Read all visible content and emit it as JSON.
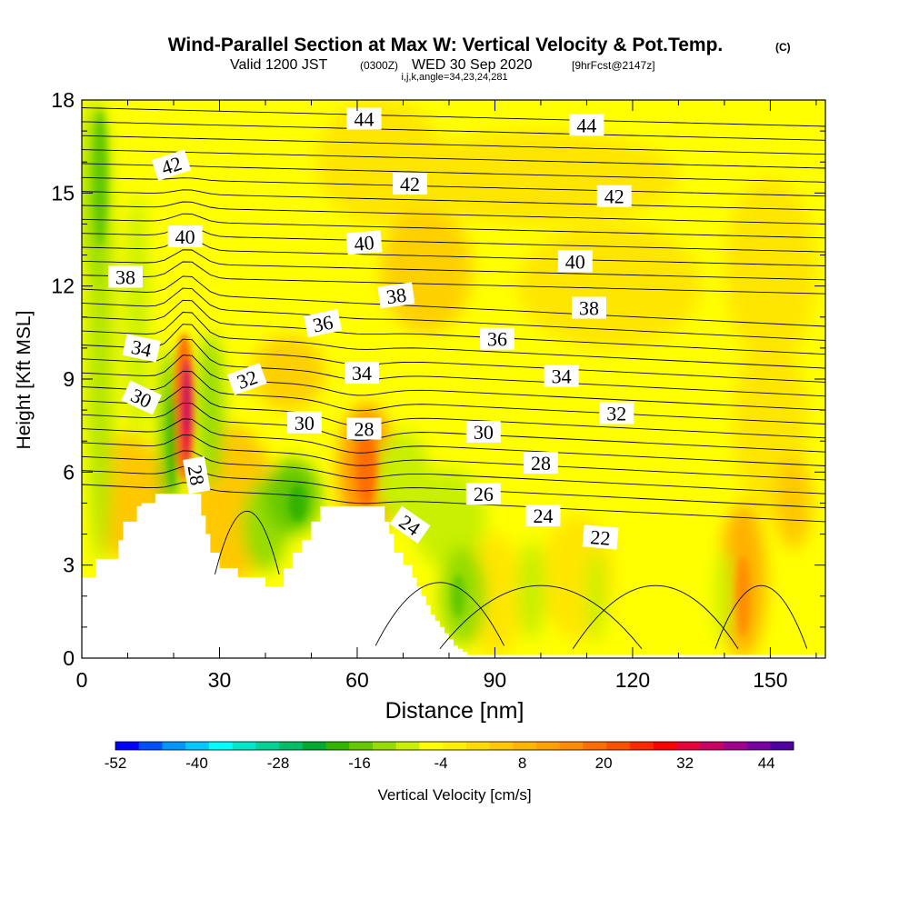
{
  "header": {
    "title": "Wind-Parallel Section at Max W: Vertical Velocity & Pot.Temp.",
    "title_mark": "(C)",
    "valid_prefix": "Valid 1200 JST",
    "valid_z": "(0300Z)",
    "valid_date": "WED 30 Sep 2020",
    "fcst": "[9hrFcst@2147z]",
    "index_line": "i,j,k,angle=34,23,24,281"
  },
  "chart_data": {
    "type": "heatmap",
    "title": "Wind-Parallel Section at Max W: Vertical Velocity & Pot.Temp.",
    "xlabel": "Distance [nm]",
    "ylabel": "Height [Kft MSL]",
    "xlim": [
      0,
      162
    ],
    "ylim": [
      0,
      18
    ],
    "x_ticks": [
      "0",
      "30",
      "60",
      "90",
      "120",
      "150"
    ],
    "x_tick_values": [
      0,
      30,
      60,
      90,
      120,
      150
    ],
    "y_ticks": [
      "0",
      "3",
      "6",
      "9",
      "12",
      "15",
      "18"
    ],
    "y_tick_values": [
      0,
      3,
      6,
      9,
      12,
      15,
      18
    ],
    "colorbar": {
      "label": "Vertical Velocity [cm/s]",
      "tick_labels": [
        "-52",
        "-40",
        "-28",
        "-16",
        "-4",
        "8",
        "20",
        "32",
        "44"
      ],
      "range": [
        -52,
        48
      ],
      "colors": [
        "#0000ff",
        "#0050ff",
        "#0096ff",
        "#00c8ff",
        "#00ffff",
        "#00e6c8",
        "#00d296",
        "#00be64",
        "#00aa32",
        "#32b400",
        "#64c800",
        "#96dc00",
        "#c8f000",
        "#ffff00",
        "#fff000",
        "#ffdc00",
        "#ffc800",
        "#ffb400",
        "#ffa000",
        "#ff8c00",
        "#ff6e00",
        "#ff5000",
        "#ff2800",
        "#ff0000",
        "#e6003c",
        "#c80064",
        "#a0008c",
        "#7800a0",
        "#5000a0"
      ]
    },
    "contour_variable": "Potential temperature",
    "contour_labels": [
      {
        "text": "44",
        "x": 61.5,
        "y": 17.4,
        "angle": 0
      },
      {
        "text": "44",
        "x": 110,
        "y": 17.2,
        "angle": 0
      },
      {
        "text": "42",
        "x": 19.5,
        "y": 15.9,
        "angle": 18
      },
      {
        "text": "42",
        "x": 71.5,
        "y": 15.3,
        "angle": 0
      },
      {
        "text": "42",
        "x": 116,
        "y": 14.9,
        "angle": 0
      },
      {
        "text": "40",
        "x": 22.5,
        "y": 13.6,
        "angle": 0
      },
      {
        "text": "40",
        "x": 61.5,
        "y": 13.4,
        "angle": 5
      },
      {
        "text": "40",
        "x": 107.5,
        "y": 12.8,
        "angle": 0
      },
      {
        "text": "38",
        "x": 9.5,
        "y": 12.3,
        "angle": 0
      },
      {
        "text": "38",
        "x": 68.5,
        "y": 11.7,
        "angle": 8
      },
      {
        "text": "38",
        "x": 110.5,
        "y": 11.3,
        "angle": 0
      },
      {
        "text": "36",
        "x": 52.5,
        "y": 10.8,
        "angle": 12
      },
      {
        "text": "36",
        "x": 90.5,
        "y": 10.3,
        "angle": 0
      },
      {
        "text": "34",
        "x": 13,
        "y": 10.0,
        "angle": -12
      },
      {
        "text": "34",
        "x": 61,
        "y": 9.2,
        "angle": 0
      },
      {
        "text": "34",
        "x": 104.5,
        "y": 9.1,
        "angle": 0
      },
      {
        "text": "32",
        "x": 36,
        "y": 9.0,
        "angle": 20
      },
      {
        "text": "32",
        "x": 116.5,
        "y": 7.9,
        "angle": 0
      },
      {
        "text": "30",
        "x": 13,
        "y": 8.4,
        "angle": -25
      },
      {
        "text": "30",
        "x": 48.5,
        "y": 7.6,
        "angle": 0
      },
      {
        "text": "30",
        "x": 87.5,
        "y": 7.3,
        "angle": 0
      },
      {
        "text": "28",
        "x": 25,
        "y": 5.9,
        "angle": -80
      },
      {
        "text": "28",
        "x": 61.5,
        "y": 7.4,
        "angle": 0
      },
      {
        "text": "28",
        "x": 100,
        "y": 6.3,
        "angle": 0
      },
      {
        "text": "26",
        "x": 87.5,
        "y": 5.3,
        "angle": 0
      },
      {
        "text": "24",
        "x": 71.5,
        "y": 4.3,
        "angle": -35
      },
      {
        "text": "24",
        "x": 100.5,
        "y": 4.6,
        "angle": 0
      },
      {
        "text": "22",
        "x": 113,
        "y": 3.9,
        "angle": -5
      }
    ],
    "terrain_profile_x": [
      0,
      2,
      3,
      4,
      5,
      6,
      7,
      8,
      9,
      10,
      12,
      13,
      14,
      15,
      16,
      17,
      18,
      19,
      20,
      21,
      22,
      23,
      24,
      25,
      26,
      27,
      28,
      29,
      30,
      31,
      32,
      33,
      34,
      35,
      36,
      37,
      38,
      39,
      40,
      41,
      42,
      43,
      44,
      45,
      46,
      47,
      48,
      49,
      50,
      51,
      52,
      53,
      54,
      55,
      56,
      57,
      58,
      59,
      60,
      61,
      62,
      63,
      64,
      65,
      66,
      67,
      68,
      69,
      70,
      71,
      72,
      73,
      74,
      75,
      76,
      77,
      78,
      79,
      80,
      81,
      82,
      83,
      84,
      85,
      86,
      87,
      88,
      89,
      90,
      91,
      92,
      93,
      94,
      95,
      162
    ],
    "terrain_profile_y": [
      2.6,
      2.6,
      3.2,
      3.2,
      3.2,
      3.2,
      3.2,
      3.8,
      4.4,
      4.4,
      4.9,
      5.0,
      5.0,
      5.0,
      5.3,
      5.3,
      5.3,
      5.3,
      5.3,
      5.3,
      5.3,
      5.3,
      5.3,
      5.3,
      4.6,
      4.0,
      3.4,
      3.4,
      2.9,
      2.9,
      2.9,
      2.9,
      2.6,
      2.6,
      2.6,
      2.6,
      2.6,
      2.6,
      2.3,
      2.3,
      2.3,
      2.3,
      2.9,
      2.9,
      3.4,
      3.4,
      3.8,
      3.8,
      4.4,
      4.4,
      4.9,
      4.9,
      4.9,
      4.9,
      4.9,
      4.9,
      4.9,
      4.9,
      4.9,
      4.9,
      4.9,
      4.9,
      4.9,
      4.9,
      4.4,
      4.0,
      3.4,
      3.4,
      3.0,
      3.0,
      2.6,
      2.3,
      2.0,
      1.7,
      1.4,
      1.2,
      1.0,
      0.8,
      0.6,
      0.4,
      0.3,
      0.2,
      0.1,
      0.1,
      0.1,
      0.1,
      0.1,
      0.1,
      0.1,
      0.1,
      0.1,
      0.1,
      0.1,
      0.1,
      0.1
    ]
  }
}
